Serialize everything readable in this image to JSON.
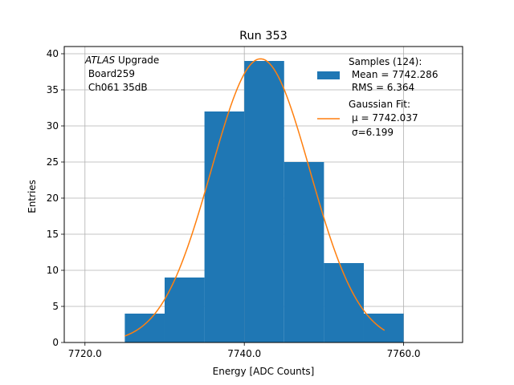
{
  "chart_data": {
    "type": "bar",
    "title": "Run 353",
    "xlabel": "Energy [ADC Counts]",
    "ylabel": "Entries",
    "xlim": [
      7717.4,
      7767.4
    ],
    "ylim": [
      0,
      41
    ],
    "grid": true,
    "x_ticks": [
      7720,
      7740,
      7760
    ],
    "x_tick_labels": [
      "7720.0",
      "7740.0",
      "7760.0"
    ],
    "y_ticks": [
      0,
      5,
      10,
      15,
      20,
      25,
      30,
      35,
      40
    ],
    "y_tick_labels": [
      "0",
      "5",
      "10",
      "15",
      "20",
      "25",
      "30",
      "35",
      "40"
    ],
    "bin_edges": [
      7725,
      7730,
      7735,
      7740,
      7745,
      7750,
      7755,
      7760
    ],
    "values": [
      4,
      9,
      32,
      39,
      25,
      11,
      4
    ],
    "gaussian_fit": {
      "mu": 7742.037,
      "sigma": 6.199,
      "amplitude": 39.3,
      "x_range": [
        7725.0,
        7757.6
      ]
    },
    "colors": {
      "histogram": "#1f77b4",
      "fit": "#ff7f0e"
    },
    "annotation": {
      "italic_part": "ATLAS",
      "rest": " Upgrade",
      "line2": " Board259",
      "line3": " Ch061 35dB"
    },
    "legend": {
      "placement": "top-right",
      "entries": [
        {
          "kind": "patch",
          "lines": [
            "Samples (124):",
            " Mean = 7742.286",
            " RMS = 6.364"
          ]
        },
        {
          "kind": "line",
          "lines": [
            "Gaussian Fit:",
            "μ = 7742.037",
            "σ=6.199"
          ]
        }
      ]
    }
  }
}
